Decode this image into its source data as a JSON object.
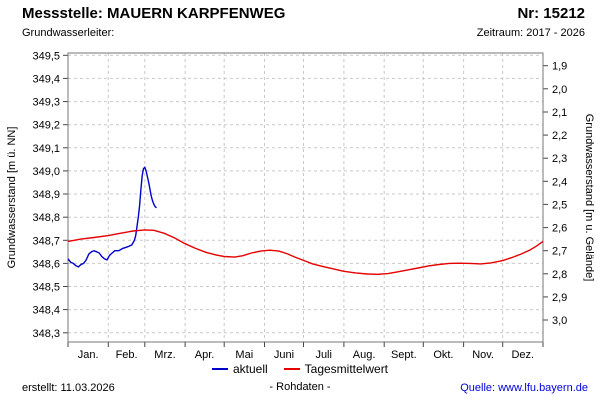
{
  "header": {
    "title_left": "Messstelle: MAUERN KARPFENWEG",
    "title_right": "Nr: 15212",
    "sub_left": "Grundwasserleiter:",
    "sub_right": "Zeitraum: 2017 - 2026"
  },
  "legend": [
    {
      "label": "aktuell",
      "color": "#0000cc"
    },
    {
      "label": "Tagesmittelwert",
      "color": "#e60000"
    }
  ],
  "footer": {
    "created": "erstellt:  11.03.2026",
    "rohdaten": "- Rohdaten -",
    "source": "Quelle: www.lfu.bayern.de"
  },
  "chart_data": {
    "type": "line",
    "ylabel_left": "Grundwasserstand [m ü. NN]",
    "ylabel_right": "Grundwasserstand [m u. Gelände]",
    "x_tick_labels": [
      "Jan.",
      "Feb.",
      "Mrz.",
      "Apr.",
      "Mai",
      "Juni",
      "Juli",
      "Aug.",
      "Sept.",
      "Okt.",
      "Nov.",
      "Dez."
    ],
    "month_boundaries": [
      0,
      31,
      59,
      90,
      120,
      151,
      181,
      212,
      243,
      273,
      304,
      334,
      365
    ],
    "xlim": [
      0,
      365
    ],
    "ylim_left": [
      348.26,
      349.51
    ],
    "ylim_right": [
      1.845,
      3.095
    ],
    "grid": true,
    "legend_position": "bottom",
    "colors": {
      "grid": "#c9c9c9",
      "border": "#777777",
      "tick": "#444444"
    },
    "y_ticks_left": [
      {
        "label": "349,5",
        "value": 349.5
      },
      {
        "label": "349,4",
        "value": 349.4
      },
      {
        "label": "349,3",
        "value": 349.3
      },
      {
        "label": "349,2",
        "value": 349.2
      },
      {
        "label": "349,1",
        "value": 349.1
      },
      {
        "label": "349,0",
        "value": 349.0
      },
      {
        "label": "348,9",
        "value": 348.9
      },
      {
        "label": "348,8",
        "value": 348.8
      },
      {
        "label": "348,7",
        "value": 348.7
      },
      {
        "label": "348,6",
        "value": 348.6
      },
      {
        "label": "348,5",
        "value": 348.5
      },
      {
        "label": "348,4",
        "value": 348.4
      },
      {
        "label": "348,3",
        "value": 348.3
      }
    ],
    "y_ticks_right": [
      {
        "label": "1,9",
        "value": 1.9
      },
      {
        "label": "2,0",
        "value": 2.0
      },
      {
        "label": "2,1",
        "value": 2.1
      },
      {
        "label": "2,2",
        "value": 2.2
      },
      {
        "label": "2,3",
        "value": 2.3
      },
      {
        "label": "2,4",
        "value": 2.4
      },
      {
        "label": "2,5",
        "value": 2.5
      },
      {
        "label": "2,6",
        "value": 2.6
      },
      {
        "label": "2,7",
        "value": 2.7
      },
      {
        "label": "2,8",
        "value": 2.8
      },
      {
        "label": "2,9",
        "value": 2.9
      },
      {
        "label": "3,0",
        "value": 3.0
      }
    ],
    "series": [
      {
        "name": "aktuell",
        "color": "#0000cc",
        "points": [
          [
            0,
            348.62
          ],
          [
            2,
            348.605
          ],
          [
            4,
            348.6
          ],
          [
            6,
            348.59
          ],
          [
            8,
            348.585
          ],
          [
            10,
            348.595
          ],
          [
            12,
            348.6
          ],
          [
            14,
            348.615
          ],
          [
            16,
            348.64
          ],
          [
            18,
            348.65
          ],
          [
            20,
            348.655
          ],
          [
            22,
            348.65
          ],
          [
            24,
            348.645
          ],
          [
            26,
            348.63
          ],
          [
            28,
            348.62
          ],
          [
            30,
            348.615
          ],
          [
            32,
            348.635
          ],
          [
            34,
            348.645
          ],
          [
            36,
            348.655
          ],
          [
            39,
            348.655
          ],
          [
            42,
            348.665
          ],
          [
            45,
            348.67
          ],
          [
            47,
            348.675
          ],
          [
            49,
            348.68
          ],
          [
            50,
            348.69
          ],
          [
            51,
            348.7
          ],
          [
            52,
            348.72
          ],
          [
            53,
            348.76
          ],
          [
            54,
            348.8
          ],
          [
            55,
            348.85
          ],
          [
            56,
            348.92
          ],
          [
            57,
            348.98
          ],
          [
            58,
            349.01
          ],
          [
            59,
            349.015
          ],
          [
            60,
            349.0
          ],
          [
            61,
            348.975
          ],
          [
            62,
            348.95
          ],
          [
            63,
            348.92
          ],
          [
            64,
            348.89
          ],
          [
            65,
            348.87
          ],
          [
            66,
            348.855
          ],
          [
            67,
            348.845
          ],
          [
            68,
            348.84
          ]
        ]
      },
      {
        "name": "Tagesmittelwert",
        "color": "#e60000",
        "points": [
          [
            0,
            348.695
          ],
          [
            10,
            348.705
          ],
          [
            20,
            348.712
          ],
          [
            31,
            348.72
          ],
          [
            40,
            348.73
          ],
          [
            50,
            348.74
          ],
          [
            59,
            348.745
          ],
          [
            66,
            348.743
          ],
          [
            74,
            348.73
          ],
          [
            82,
            348.71
          ],
          [
            90,
            348.685
          ],
          [
            98,
            348.665
          ],
          [
            106,
            348.648
          ],
          [
            114,
            348.636
          ],
          [
            120,
            348.63
          ],
          [
            128,
            348.627
          ],
          [
            134,
            348.633
          ],
          [
            141,
            348.645
          ],
          [
            148,
            348.653
          ],
          [
            155,
            348.657
          ],
          [
            162,
            348.653
          ],
          [
            168,
            348.643
          ],
          [
            174,
            348.628
          ],
          [
            181,
            348.613
          ],
          [
            188,
            348.598
          ],
          [
            196,
            348.586
          ],
          [
            204,
            348.576
          ],
          [
            212,
            348.566
          ],
          [
            221,
            348.559
          ],
          [
            230,
            348.554
          ],
          [
            238,
            348.553
          ],
          [
            246,
            348.556
          ],
          [
            253,
            348.563
          ],
          [
            261,
            348.572
          ],
          [
            269,
            348.58
          ],
          [
            277,
            348.589
          ],
          [
            285,
            348.595
          ],
          [
            293,
            348.6
          ],
          [
            301,
            348.601
          ],
          [
            309,
            348.6
          ],
          [
            317,
            348.598
          ],
          [
            325,
            348.602
          ],
          [
            334,
            348.612
          ],
          [
            341,
            348.625
          ],
          [
            348,
            348.64
          ],
          [
            355,
            348.658
          ],
          [
            360,
            348.675
          ],
          [
            365,
            348.695
          ]
        ]
      }
    ]
  }
}
